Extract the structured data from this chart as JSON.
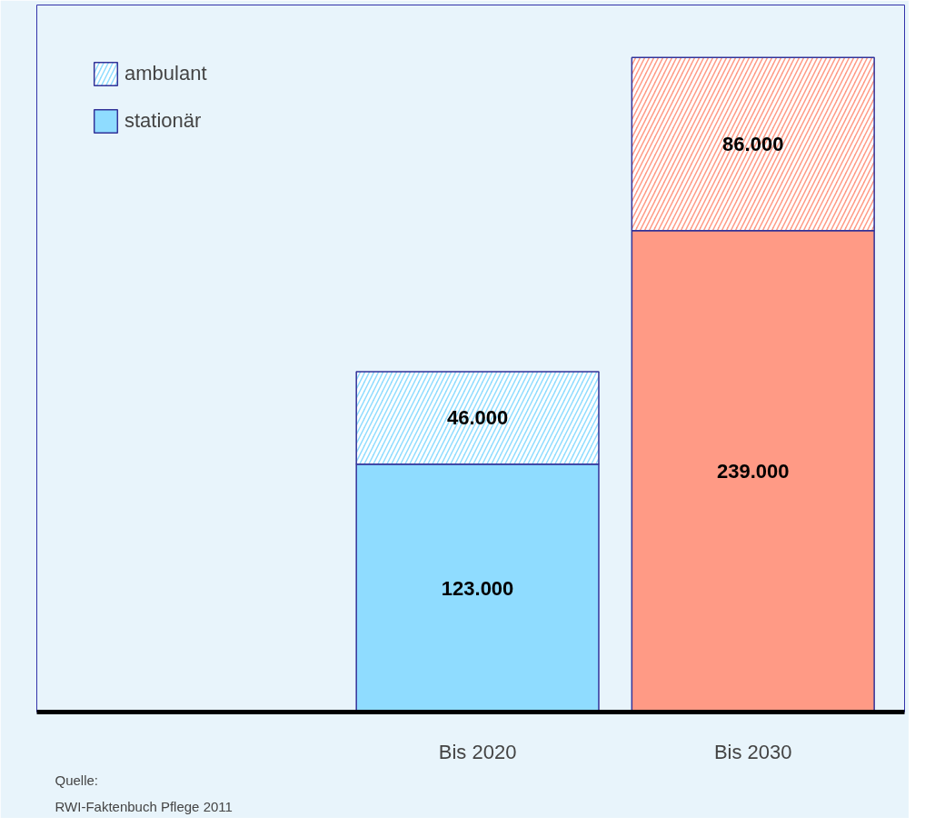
{
  "chart_data": {
    "type": "bar",
    "stacked": true,
    "categories": [
      "Bis 2020",
      "Bis 2030"
    ],
    "series": [
      {
        "name": "stationär",
        "colors": [
          "#8fdcff",
          "#ff9a85"
        ],
        "values": [
          123000,
          239000
        ],
        "value_labels": [
          "123.000",
          "239.000"
        ]
      },
      {
        "name": "ambulant",
        "colors": [
          "#8fdcff",
          "#ff9a85"
        ],
        "values": [
          46000,
          86000
        ],
        "value_labels": [
          "46.000",
          "86.000"
        ]
      }
    ],
    "legend": "top left",
    "annotations": [
      "Quelle:",
      "RWI-Faktenbuch Pflege 2011"
    ]
  }
}
